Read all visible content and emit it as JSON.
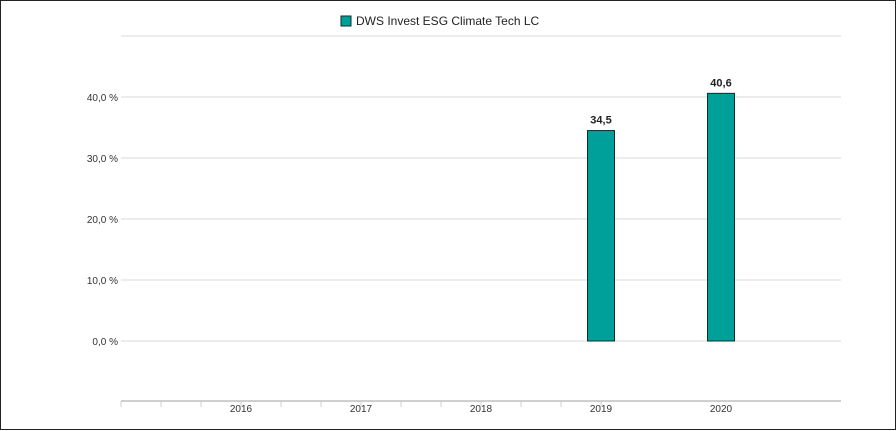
{
  "chart_data": {
    "type": "bar",
    "categories": [
      "2016",
      "2017",
      "2018",
      "2019",
      "2020"
    ],
    "series": [
      {
        "name": "DWS Invest ESG Climate Tech  LC",
        "values": [
          null,
          null,
          null,
          34.5,
          40.6
        ],
        "labels": [
          "",
          "",
          "",
          "34,5",
          "40,6"
        ]
      }
    ],
    "y_ticks": [
      0,
      10,
      20,
      30,
      40
    ],
    "y_tick_labels": [
      "0,0 %",
      "10,0 %",
      "20,0 %",
      "30,0 %",
      "40,0 %"
    ],
    "ylim": [
      -7,
      47
    ],
    "grid": true,
    "legend_position": "top-center",
    "colors": {
      "bar_fill": "#00a09a",
      "bar_stroke": "#0b2e2c",
      "grid": "#d9d9d9",
      "axis": "#cfcfcf"
    }
  }
}
